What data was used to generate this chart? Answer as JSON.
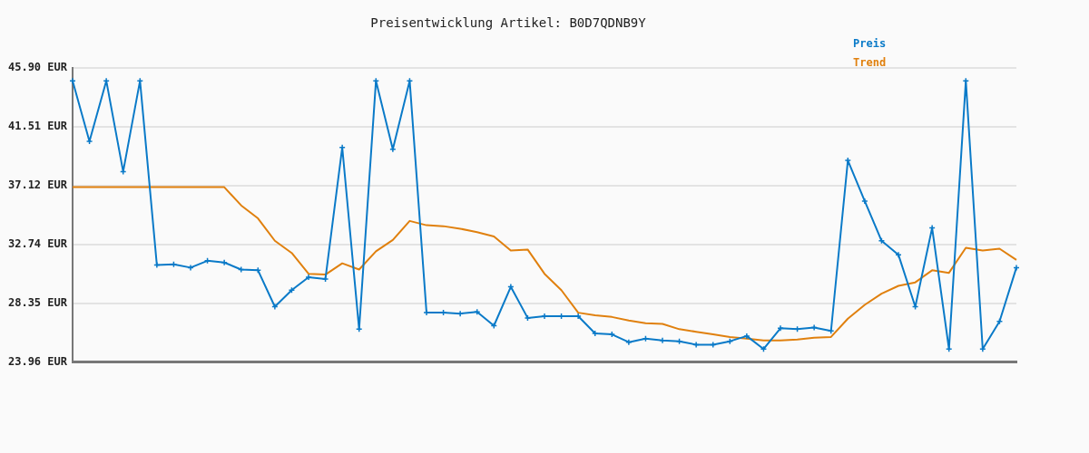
{
  "chart_data": {
    "type": "line",
    "title": "Preisentwicklung Artikel: B0D7QDNB9Y",
    "categories": [
      null,
      null,
      null,
      null,
      null,
      null,
      null,
      null,
      null,
      null,
      null,
      null,
      null,
      null,
      null,
      null,
      null,
      null,
      null,
      null,
      null,
      null,
      null,
      null,
      null,
      null,
      null,
      null,
      null,
      null,
      null,
      null,
      null,
      null,
      null,
      null,
      null,
      null,
      null,
      null,
      null,
      null,
      null,
      null,
      null,
      null,
      null,
      null,
      null,
      null,
      null,
      null,
      null,
      null,
      null,
      null,
      null
    ],
    "series": [
      {
        "name": "Preis",
        "color": "#0a7ac8",
        "marker": "cross",
        "values": [
          44.93,
          40.41,
          44.93,
          38.16,
          44.93,
          31.19,
          31.25,
          31.0,
          31.51,
          31.38,
          30.86,
          30.8,
          28.09,
          29.32,
          30.28,
          30.15,
          39.96,
          26.41,
          44.93,
          39.83,
          44.93,
          27.64,
          27.64,
          27.57,
          27.7,
          26.67,
          29.57,
          27.25,
          27.38,
          27.38,
          27.38,
          26.09,
          26.02,
          25.44,
          25.7,
          25.57,
          25.51,
          25.25,
          25.25,
          25.51,
          25.9,
          24.93,
          26.48,
          26.41,
          26.54,
          26.28,
          38.99,
          35.96,
          33.0,
          31.96,
          28.09,
          33.96,
          24.93,
          44.93,
          24.93,
          26.99,
          31.0
        ]
      },
      {
        "name": "Trend",
        "color": "#e0800e",
        "marker": "none",
        "values": [
          37.0,
          37.0,
          37.0,
          37.0,
          37.0,
          37.0,
          37.0,
          37.0,
          37.0,
          37.0,
          35.64,
          34.67,
          33.0,
          32.09,
          30.54,
          30.48,
          31.32,
          30.86,
          32.22,
          33.06,
          34.48,
          34.16,
          34.09,
          33.9,
          33.64,
          33.32,
          32.28,
          32.35,
          30.54,
          29.32,
          27.64,
          27.45,
          27.32,
          27.06,
          26.86,
          26.8,
          26.41,
          26.22,
          26.02,
          25.83,
          25.7,
          25.57,
          25.57,
          25.64,
          25.77,
          25.83,
          27.19,
          28.22,
          29.06,
          29.64,
          29.9,
          30.8,
          30.61,
          32.48,
          32.28,
          32.41,
          31.58
        ]
      }
    ],
    "ylim": [
      23.96,
      45.9
    ],
    "yticks": [
      {
        "value": 23.96,
        "label": "23.96 EUR"
      },
      {
        "value": 28.35,
        "label": "28.35 EUR"
      },
      {
        "value": 32.74,
        "label": "32.74 EUR"
      },
      {
        "value": 37.12,
        "label": "37.12 EUR"
      },
      {
        "value": 41.51,
        "label": "41.51 EUR"
      },
      {
        "value": 45.9,
        "label": "45.90 EUR"
      }
    ],
    "grid": "y",
    "legend": "top right"
  }
}
